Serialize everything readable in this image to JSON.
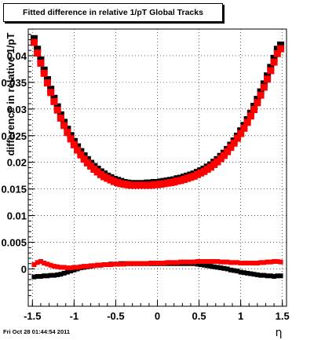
{
  "window": {
    "footer_timestamp": "Fri Oct 28 01:44:54 2011"
  },
  "chart_data": {
    "type": "scatter",
    "title": "Fitted difference in relative 1/pT  Global Tracks",
    "xlabel": "η",
    "ylabel": "difference in relative 1/pT",
    "xlim": [
      -1.55,
      1.55
    ],
    "ylim": [
      -0.007,
      0.045
    ],
    "grid": true,
    "x_ticks": [
      -1.5,
      -1,
      -0.5,
      0,
      0.5,
      1,
      1.5
    ],
    "x_tick_labels": [
      "-1.5",
      "-1",
      "-0.5",
      "0",
      "0.5",
      "1",
      "1.5"
    ],
    "y_ticks": [
      0,
      0.005,
      0.01,
      0.015,
      0.02,
      0.025,
      0.03,
      0.035,
      0.04
    ],
    "y_tick_labels": [
      "0",
      "0.005",
      "0.01",
      "0.015",
      "0.02",
      "0.025",
      "0.03",
      "0.035",
      "0.04"
    ],
    "colors": {
      "series_a": "#000000",
      "series_b": "#ff0000"
    },
    "series": [
      {
        "color": "#000000",
        "marker": "square",
        "x": [
          -1.48,
          -1.44,
          -1.4,
          -1.36,
          -1.32,
          -1.28,
          -1.24,
          -1.2,
          -1.16,
          -1.12,
          -1.08,
          -1.04,
          -1.0,
          -0.96,
          -0.92,
          -0.88,
          -0.84,
          -0.8,
          -0.76,
          -0.72,
          -0.68,
          -0.64,
          -0.6,
          -0.56,
          -0.52,
          -0.48,
          -0.44,
          -0.4,
          -0.36,
          -0.32,
          -0.28,
          -0.24,
          -0.2,
          -0.16,
          -0.12,
          -0.08,
          -0.04,
          0.0,
          0.04,
          0.08,
          0.12,
          0.16,
          0.2,
          0.24,
          0.28,
          0.32,
          0.36,
          0.4,
          0.44,
          0.48,
          0.52,
          0.56,
          0.6,
          0.64,
          0.68,
          0.72,
          0.76,
          0.8,
          0.84,
          0.88,
          0.92,
          0.96,
          1.0,
          1.04,
          1.08,
          1.12,
          1.16,
          1.2,
          1.24,
          1.28,
          1.32,
          1.36,
          1.4,
          1.44,
          1.48
        ],
        "y": [
          0.0432,
          0.0412,
          0.0392,
          0.0373,
          0.0355,
          0.0337,
          0.032,
          0.0304,
          0.0289,
          0.0275,
          0.0262,
          0.025,
          0.0239,
          0.0229,
          0.022,
          0.0212,
          0.0205,
          0.0198,
          0.0192,
          0.0187,
          0.0182,
          0.0178,
          0.0174,
          0.0171,
          0.0168,
          0.0166,
          0.0164,
          0.0162,
          0.0161,
          0.016,
          0.016,
          0.016,
          0.016,
          0.016,
          0.0161,
          0.0161,
          0.0162,
          0.0162,
          0.0163,
          0.0164,
          0.0165,
          0.0166,
          0.0167,
          0.0169,
          0.017,
          0.0172,
          0.0174,
          0.0176,
          0.0178,
          0.0181,
          0.0184,
          0.0187,
          0.0191,
          0.0195,
          0.02,
          0.0205,
          0.0211,
          0.0217,
          0.0224,
          0.0232,
          0.024,
          0.0249,
          0.0259,
          0.0269,
          0.028,
          0.0292,
          0.0305,
          0.0318,
          0.0332,
          0.0347,
          0.0362,
          0.0378,
          0.0395,
          0.0412,
          0.042
        ]
      },
      {
        "color": "#ff0000",
        "marker": "square",
        "x": [
          -1.48,
          -1.44,
          -1.4,
          -1.36,
          -1.32,
          -1.28,
          -1.24,
          -1.2,
          -1.16,
          -1.12,
          -1.08,
          -1.04,
          -1.0,
          -0.96,
          -0.92,
          -0.88,
          -0.84,
          -0.8,
          -0.76,
          -0.72,
          -0.68,
          -0.64,
          -0.6,
          -0.56,
          -0.52,
          -0.48,
          -0.44,
          -0.4,
          -0.36,
          -0.32,
          -0.28,
          -0.24,
          -0.2,
          -0.16,
          -0.12,
          -0.08,
          -0.04,
          0.0,
          0.04,
          0.08,
          0.12,
          0.16,
          0.2,
          0.24,
          0.28,
          0.32,
          0.36,
          0.4,
          0.44,
          0.48,
          0.52,
          0.56,
          0.6,
          0.64,
          0.68,
          0.72,
          0.76,
          0.8,
          0.84,
          0.88,
          0.92,
          0.96,
          1.0,
          1.04,
          1.08,
          1.12,
          1.16,
          1.2,
          1.24,
          1.28,
          1.32,
          1.36,
          1.4,
          1.44,
          1.48
        ],
        "y": [
          0.0425,
          0.0405,
          0.0386,
          0.0367,
          0.0349,
          0.0331,
          0.0314,
          0.0298,
          0.0283,
          0.0269,
          0.0256,
          0.0244,
          0.0233,
          0.0223,
          0.0214,
          0.0206,
          0.0199,
          0.0193,
          0.0187,
          0.0182,
          0.0177,
          0.0173,
          0.017,
          0.0167,
          0.0164,
          0.0162,
          0.016,
          0.0159,
          0.0158,
          0.0157,
          0.0157,
          0.0157,
          0.0157,
          0.0157,
          0.0157,
          0.0157,
          0.0158,
          0.0158,
          0.0159,
          0.016,
          0.0161,
          0.0162,
          0.0163,
          0.0165,
          0.0166,
          0.0168,
          0.017,
          0.0172,
          0.0174,
          0.0177,
          0.018,
          0.0183,
          0.0187,
          0.0191,
          0.0196,
          0.0201,
          0.0207,
          0.0213,
          0.022,
          0.0228,
          0.0236,
          0.0245,
          0.0254,
          0.0264,
          0.0275,
          0.0287,
          0.0299,
          0.0312,
          0.0326,
          0.0341,
          0.0356,
          0.0372,
          0.0388,
          0.0404,
          0.0413
        ]
      },
      {
        "color": "#000000",
        "marker": "square",
        "x": [
          -1.48,
          -1.44,
          -1.4,
          -1.36,
          -1.32,
          -1.28,
          -1.24,
          -1.2,
          -1.16,
          -1.12,
          -1.08,
          -1.04,
          -1.0,
          -0.96,
          -0.92,
          -0.88,
          -0.84,
          -0.8,
          -0.76,
          -0.72,
          -0.68,
          -0.64,
          -0.6,
          -0.56,
          -0.52,
          -0.48,
          -0.44,
          -0.4,
          -0.36,
          -0.32,
          -0.28,
          -0.24,
          -0.2,
          -0.16,
          -0.12,
          -0.08,
          -0.04,
          0.0,
          0.04,
          0.08,
          0.12,
          0.16,
          0.2,
          0.24,
          0.28,
          0.32,
          0.36,
          0.4,
          0.44,
          0.48,
          0.52,
          0.56,
          0.6,
          0.64,
          0.68,
          0.72,
          0.76,
          0.8,
          0.84,
          0.88,
          0.92,
          0.96,
          1.0,
          1.04,
          1.08,
          1.12,
          1.16,
          1.2,
          1.24,
          1.28,
          1.32,
          1.36,
          1.4,
          1.44,
          1.48
        ],
        "y": [
          -0.0015,
          -0.0014,
          -0.0014,
          -0.0013,
          -0.0013,
          -0.0012,
          -0.0012,
          -0.0011,
          -0.001,
          -0.0008,
          -0.0006,
          -0.0004,
          -0.0002,
          0.0,
          0.0002,
          0.0003,
          0.0004,
          0.0005,
          0.0006,
          0.0007,
          0.0007,
          0.0008,
          0.0008,
          0.0009,
          0.0009,
          0.0009,
          0.001,
          0.001,
          0.001,
          0.001,
          0.001,
          0.001,
          0.001,
          0.001,
          0.001,
          0.001,
          0.001,
          0.001,
          0.001,
          0.001,
          0.001,
          0.001,
          0.001,
          0.001,
          0.001,
          0.001,
          0.001,
          0.001,
          0.001,
          0.0009,
          0.0008,
          0.0007,
          0.0006,
          0.0005,
          0.0004,
          0.0003,
          0.0002,
          0.0001,
          0.0,
          -0.0002,
          -0.0003,
          -0.0004,
          -0.0006,
          -0.0007,
          -0.0008,
          -0.0009,
          -0.001,
          -0.0011,
          -0.0012,
          -0.0012,
          -0.0013,
          -0.0013,
          -0.0014,
          -0.0013,
          -0.0013
        ]
      },
      {
        "color": "#ff0000",
        "marker": "square",
        "x": [
          -1.48,
          -1.44,
          -1.4,
          -1.36,
          -1.32,
          -1.28,
          -1.24,
          -1.2,
          -1.16,
          -1.12,
          -1.08,
          -1.04,
          -1.0,
          -0.96,
          -0.92,
          -0.88,
          -0.84,
          -0.8,
          -0.76,
          -0.72,
          -0.68,
          -0.64,
          -0.6,
          -0.56,
          -0.52,
          -0.48,
          -0.44,
          -0.4,
          -0.36,
          -0.32,
          -0.28,
          -0.24,
          -0.2,
          -0.16,
          -0.12,
          -0.08,
          -0.04,
          0.0,
          0.04,
          0.08,
          0.12,
          0.16,
          0.2,
          0.24,
          0.28,
          0.32,
          0.36,
          0.4,
          0.44,
          0.48,
          0.52,
          0.56,
          0.6,
          0.64,
          0.68,
          0.72,
          0.76,
          0.8,
          0.84,
          0.88,
          0.92,
          0.96,
          1.0,
          1.04,
          1.08,
          1.12,
          1.16,
          1.2,
          1.24,
          1.28,
          1.32,
          1.36,
          1.4,
          1.44,
          1.48
        ],
        "y": [
          0.0008,
          0.0012,
          0.0014,
          0.0011,
          0.0009,
          0.0007,
          0.0005,
          0.0004,
          0.0003,
          0.0003,
          0.0002,
          0.0002,
          0.0003,
          0.0003,
          0.0004,
          0.0005,
          0.0005,
          0.0006,
          0.0006,
          0.0007,
          0.0007,
          0.0008,
          0.0008,
          0.0008,
          0.0009,
          0.0009,
          0.0009,
          0.0009,
          0.001,
          0.001,
          0.001,
          0.001,
          0.001,
          0.001,
          0.001,
          0.0011,
          0.0011,
          0.0011,
          0.0011,
          0.0011,
          0.0012,
          0.0012,
          0.0012,
          0.0012,
          0.0013,
          0.0013,
          0.0013,
          0.0013,
          0.0013,
          0.0014,
          0.0014,
          0.0014,
          0.0014,
          0.0014,
          0.0014,
          0.0014,
          0.0013,
          0.0013,
          0.0013,
          0.0012,
          0.0012,
          0.0012,
          0.0011,
          0.0011,
          0.0011,
          0.0011,
          0.0011,
          0.0011,
          0.0012,
          0.0012,
          0.0013,
          0.0013,
          0.0014,
          0.0014,
          0.0013
        ]
      }
    ]
  }
}
